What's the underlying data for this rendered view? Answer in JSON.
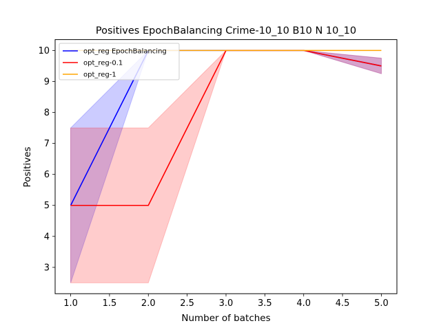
{
  "chart_data": {
    "type": "line",
    "title": "Positives EpochBalancing Crime-10_10 B10 N 10_10",
    "xlabel": "Number of batches",
    "ylabel": "Positives",
    "xlim": [
      0.8,
      5.2
    ],
    "ylim": [
      2.15,
      10.35
    ],
    "xticks": [
      1.0,
      1.5,
      2.0,
      2.5,
      3.0,
      3.5,
      4.0,
      4.5,
      5.0
    ],
    "xtick_labels": [
      "1.0",
      "1.5",
      "2.0",
      "2.5",
      "3.0",
      "3.5",
      "4.0",
      "4.5",
      "5.0"
    ],
    "yticks": [
      3,
      4,
      5,
      6,
      7,
      8,
      9,
      10
    ],
    "ytick_labels": [
      "3",
      "4",
      "5",
      "6",
      "7",
      "8",
      "9",
      "10"
    ],
    "grid": false,
    "legend_position": "top-left",
    "series": [
      {
        "name": "opt_reg EpochBalancing",
        "color": "#0000ff",
        "x": [
          1,
          2,
          3,
          4,
          5
        ],
        "y": [
          5,
          10,
          10,
          10,
          9.5
        ],
        "lower": [
          2.5,
          10,
          10,
          10,
          9.25
        ],
        "upper": [
          7.5,
          10,
          10,
          10,
          9.75
        ]
      },
      {
        "name": "opt_reg-0.1",
        "color": "#ff0000",
        "x": [
          1,
          2,
          3,
          4,
          5
        ],
        "y": [
          5,
          5,
          10,
          10,
          9.5
        ],
        "lower": [
          2.5,
          2.5,
          10,
          10,
          9.25
        ],
        "upper": [
          7.5,
          7.5,
          10,
          10,
          9.75
        ]
      },
      {
        "name": "opt_reg-1",
        "color": "#ffa500",
        "x": [
          1,
          2,
          3,
          4,
          5
        ],
        "y": [
          10,
          10,
          10,
          10,
          10
        ],
        "lower": [
          10,
          10,
          10,
          10,
          10
        ],
        "upper": [
          10,
          10,
          10,
          10,
          10
        ]
      }
    ]
  }
}
